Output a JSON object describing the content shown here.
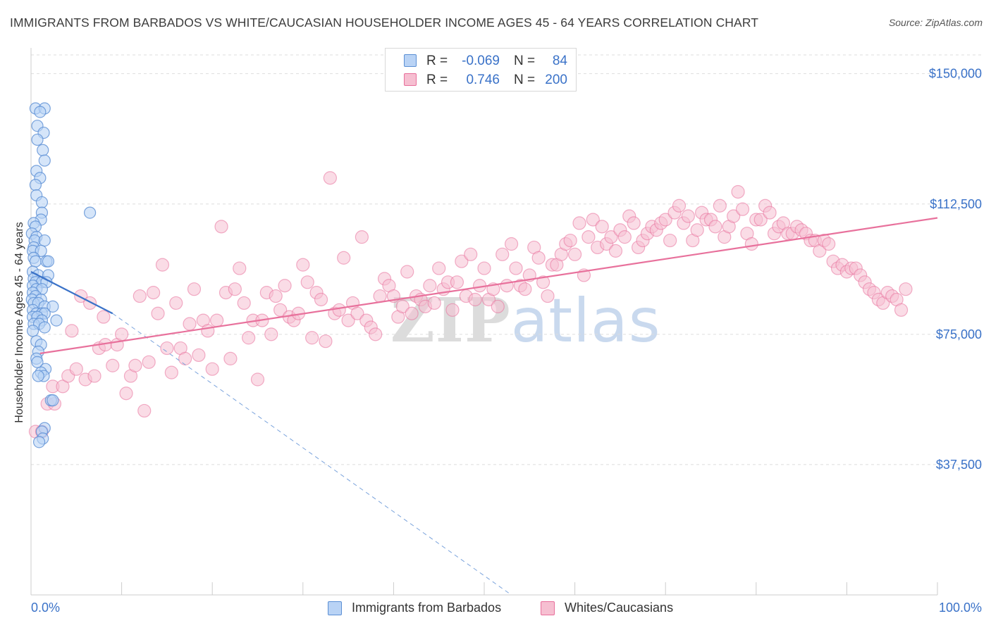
{
  "title": "IMMIGRANTS FROM BARBADOS VS WHITE/CAUCASIAN HOUSEHOLDER INCOME AGES 45 - 64 YEARS CORRELATION CHART",
  "source": "Source: ZipAtlas.com",
  "watermark": {
    "zip": "ZIP",
    "atlas": "atlas"
  },
  "colors": {
    "blue": "#5b8fd4",
    "blue_fill": "#b9d3f5",
    "pink": "#e86f9b",
    "pink_fill": "#f6bfd1",
    "value_text": "#3a72c8"
  },
  "legend_top": {
    "rows": [
      {
        "r_label": "R =",
        "r_value": "-0.069",
        "n_label": "N =",
        "n_value": "84"
      },
      {
        "r_label": "R =",
        "r_value": "0.746",
        "n_label": "N =",
        "n_value": "200"
      }
    ]
  },
  "legend_bottom": {
    "series1": "Immigrants from Barbados",
    "series2": "Whites/Caucasians"
  },
  "chart_data": {
    "type": "scatter",
    "title": "IMMIGRANTS FROM BARBADOS VS WHITE/CAUCASIAN HOUSEHOLDER INCOME AGES 45 - 64 YEARS CORRELATION CHART",
    "xlabel": "",
    "ylabel": "Householder Income Ages 45 - 64 years",
    "xlim": [
      0,
      100
    ],
    "ylim": [
      0,
      155000
    ],
    "x_tick_labels": [
      "0.0%",
      "100.0%"
    ],
    "y_ticks": [
      37500,
      75000,
      112500,
      150000
    ],
    "y_tick_labels": [
      "$37,500",
      "$75,000",
      "$112,500",
      "$150,000"
    ],
    "grid": true,
    "series": [
      {
        "name": "Immigrants from Barbados",
        "color": "#5b8fd4",
        "R": -0.069,
        "N": 84,
        "trend": {
          "x": [
            0,
            9
          ],
          "y": [
            93000,
            81000
          ],
          "extended_to_x": 53,
          "extended_to_y": 0
        },
        "points": [
          [
            0.5,
            140
          ],
          [
            1.5,
            140
          ],
          [
            1,
            139
          ],
          [
            0.7,
            135
          ],
          [
            1.4,
            133
          ],
          [
            0.7,
            131
          ],
          [
            1.3,
            128
          ],
          [
            1.5,
            125
          ],
          [
            0.6,
            122
          ],
          [
            1,
            120
          ],
          [
            0.5,
            118
          ],
          [
            0.6,
            115
          ],
          [
            1.2,
            113
          ],
          [
            1.2,
            110
          ],
          [
            1.1,
            108
          ],
          [
            0.3,
            107
          ],
          [
            0.5,
            106
          ],
          [
            0.1,
            104
          ],
          [
            0.6,
            103
          ],
          [
            0.4,
            102
          ],
          [
            1.5,
            102
          ],
          [
            0.3,
            100
          ],
          [
            0.2,
            99
          ],
          [
            1.1,
            99
          ],
          [
            0.3,
            97
          ],
          [
            0.5,
            96
          ],
          [
            1.7,
            96
          ],
          [
            1.9,
            96
          ],
          [
            0.2,
            93
          ],
          [
            0.8,
            92
          ],
          [
            1.9,
            92
          ],
          [
            0.3,
            91
          ],
          [
            0.5,
            90
          ],
          [
            1.2,
            90
          ],
          [
            1.7,
            90
          ],
          [
            0.2,
            89
          ],
          [
            0.6,
            88
          ],
          [
            1.2,
            88
          ],
          [
            0.2,
            87
          ],
          [
            0.5,
            86
          ],
          [
            0.1,
            85
          ],
          [
            1.1,
            85
          ],
          [
            0.3,
            84
          ],
          [
            0.8,
            84
          ],
          [
            1.5,
            83
          ],
          [
            2.4,
            83
          ],
          [
            0.2,
            82
          ],
          [
            0.6,
            81
          ],
          [
            1.2,
            81
          ],
          [
            1.5,
            81
          ],
          [
            0.2,
            80
          ],
          [
            0.7,
            80
          ],
          [
            1.2,
            79
          ],
          [
            2.8,
            79
          ],
          [
            0.3,
            78
          ],
          [
            0.9,
            78
          ],
          [
            1.5,
            77
          ],
          [
            0.2,
            76
          ],
          [
            0.6,
            73
          ],
          [
            1.1,
            72
          ],
          [
            0.8,
            70
          ],
          [
            0.6,
            68
          ],
          [
            0.7,
            67
          ],
          [
            1.6,
            65
          ],
          [
            1.1,
            64
          ],
          [
            1.4,
            63
          ],
          [
            0.8,
            63
          ],
          [
            2.2,
            56
          ],
          [
            2.4,
            56
          ],
          [
            1.5,
            48
          ],
          [
            1.2,
            47
          ],
          [
            1.3,
            45
          ],
          [
            0.9,
            44
          ],
          [
            6.5,
            110
          ]
        ]
      },
      {
        "name": "Whites/Caucasians",
        "color": "#e86f9b",
        "R": 0.746,
        "N": 200,
        "trend": {
          "x": [
            1,
            100
          ],
          "y": [
            69500,
            108500
          ]
        },
        "points": [
          [
            0.5,
            47
          ],
          [
            1.2,
            47
          ],
          [
            1.8,
            55
          ],
          [
            2.6,
            55
          ],
          [
            2.4,
            60
          ],
          [
            3.5,
            60
          ],
          [
            4.1,
            63
          ],
          [
            4.5,
            76
          ],
          [
            5,
            65
          ],
          [
            5.5,
            86
          ],
          [
            6,
            62
          ],
          [
            6.5,
            84
          ],
          [
            7,
            63
          ],
          [
            7.5,
            71
          ],
          [
            8,
            80
          ],
          [
            8.2,
            72
          ],
          [
            9,
            66
          ],
          [
            9.5,
            72
          ],
          [
            10,
            75
          ],
          [
            10.5,
            58
          ],
          [
            11,
            63
          ],
          [
            11.5,
            66
          ],
          [
            12,
            86
          ],
          [
            12.5,
            53
          ],
          [
            13,
            67
          ],
          [
            13.5,
            87
          ],
          [
            14,
            81
          ],
          [
            14.5,
            95
          ],
          [
            15,
            71
          ],
          [
            15.5,
            64
          ],
          [
            16,
            84
          ],
          [
            16.5,
            71
          ],
          [
            17,
            68
          ],
          [
            17.5,
            78
          ],
          [
            18,
            88
          ],
          [
            18.5,
            69
          ],
          [
            19,
            79
          ],
          [
            19.5,
            76
          ],
          [
            20,
            65
          ],
          [
            20.5,
            79
          ],
          [
            21,
            106
          ],
          [
            21.5,
            87
          ],
          [
            22,
            68
          ],
          [
            22.5,
            88
          ],
          [
            23,
            94
          ],
          [
            23.5,
            84
          ],
          [
            24,
            74
          ],
          [
            24.5,
            79
          ],
          [
            25,
            62
          ],
          [
            25.5,
            79
          ],
          [
            26,
            87
          ],
          [
            26.5,
            75
          ],
          [
            27,
            86
          ],
          [
            27.5,
            82
          ],
          [
            28,
            89
          ],
          [
            28.5,
            80
          ],
          [
            29,
            79
          ],
          [
            29.5,
            81
          ],
          [
            30,
            95
          ],
          [
            30.5,
            90
          ],
          [
            31,
            74
          ],
          [
            31.5,
            87
          ],
          [
            32,
            85
          ],
          [
            32.5,
            73
          ],
          [
            33,
            120
          ],
          [
            33.5,
            81
          ],
          [
            34,
            82
          ],
          [
            34.5,
            97
          ],
          [
            35,
            79
          ],
          [
            35.5,
            84
          ],
          [
            36,
            81
          ],
          [
            36.5,
            103
          ],
          [
            37,
            79
          ],
          [
            37.5,
            77
          ],
          [
            38,
            75
          ],
          [
            38.5,
            86
          ],
          [
            39,
            91
          ],
          [
            39.5,
            89
          ],
          [
            40,
            86
          ],
          [
            40.5,
            80
          ],
          [
            41,
            83
          ],
          [
            41.5,
            93
          ],
          [
            42,
            81
          ],
          [
            42.5,
            86
          ],
          [
            43,
            85
          ],
          [
            43.5,
            83
          ],
          [
            44,
            89
          ],
          [
            44.5,
            84
          ],
          [
            45,
            94
          ],
          [
            45.5,
            88
          ],
          [
            46,
            90
          ],
          [
            46.5,
            82
          ],
          [
            47,
            90
          ],
          [
            47.5,
            96
          ],
          [
            48,
            86
          ],
          [
            48.5,
            98
          ],
          [
            49,
            85
          ],
          [
            49.5,
            89
          ],
          [
            50,
            94
          ],
          [
            50.5,
            85
          ],
          [
            51,
            88
          ],
          [
            51.5,
            83
          ],
          [
            52,
            98
          ],
          [
            52.5,
            89
          ],
          [
            53,
            101
          ],
          [
            53.5,
            94
          ],
          [
            54,
            89
          ],
          [
            54.5,
            88
          ],
          [
            55,
            92
          ],
          [
            55.5,
            100
          ],
          [
            56,
            97
          ],
          [
            56.5,
            90
          ],
          [
            57,
            86
          ],
          [
            57.5,
            95
          ],
          [
            58,
            95
          ],
          [
            58.5,
            98
          ],
          [
            59,
            101
          ],
          [
            59.5,
            102
          ],
          [
            60,
            98
          ],
          [
            60.5,
            107
          ],
          [
            61,
            92
          ],
          [
            61.5,
            103
          ],
          [
            62,
            108
          ],
          [
            62.5,
            100
          ],
          [
            63,
            106
          ],
          [
            63.5,
            101
          ],
          [
            64,
            103
          ],
          [
            64.5,
            99
          ],
          [
            65,
            105
          ],
          [
            65.5,
            103
          ],
          [
            66,
            109
          ],
          [
            66.5,
            107
          ],
          [
            67,
            100
          ],
          [
            67.5,
            102
          ],
          [
            68,
            104
          ],
          [
            68.5,
            106
          ],
          [
            69,
            105
          ],
          [
            69.5,
            107
          ],
          [
            70,
            108
          ],
          [
            70.5,
            102
          ],
          [
            71,
            110
          ],
          [
            71.5,
            112
          ],
          [
            72,
            107
          ],
          [
            72.5,
            109
          ],
          [
            73,
            102
          ],
          [
            73.5,
            105
          ],
          [
            74,
            110
          ],
          [
            74.5,
            108
          ],
          [
            75,
            108
          ],
          [
            75.5,
            106
          ],
          [
            76,
            112
          ],
          [
            76.5,
            103
          ],
          [
            77,
            106
          ],
          [
            77.5,
            109
          ],
          [
            78,
            116
          ],
          [
            78.5,
            111
          ],
          [
            79,
            104
          ],
          [
            79.5,
            101
          ],
          [
            80,
            108
          ],
          [
            80.5,
            108
          ],
          [
            81,
            112
          ],
          [
            81.5,
            110
          ],
          [
            82,
            104
          ],
          [
            82.5,
            106
          ],
          [
            83,
            107
          ],
          [
            83.5,
            104
          ],
          [
            84,
            104
          ],
          [
            84.5,
            106
          ],
          [
            85,
            105
          ],
          [
            85.5,
            104
          ],
          [
            86,
            102
          ],
          [
            86.5,
            102
          ],
          [
            87,
            99
          ],
          [
            87.5,
            102
          ],
          [
            88,
            101
          ],
          [
            88.5,
            96
          ],
          [
            89,
            94
          ],
          [
            89.5,
            95
          ],
          [
            90,
            93
          ],
          [
            90.5,
            94
          ],
          [
            91,
            94
          ],
          [
            91.5,
            92
          ],
          [
            92,
            90
          ],
          [
            92.5,
            88
          ],
          [
            93,
            87
          ],
          [
            93.5,
            85
          ],
          [
            94,
            84
          ],
          [
            94.5,
            87
          ],
          [
            95,
            86
          ],
          [
            95.5,
            85
          ],
          [
            96,
            82
          ],
          [
            96.5,
            88
          ]
        ]
      }
    ]
  }
}
